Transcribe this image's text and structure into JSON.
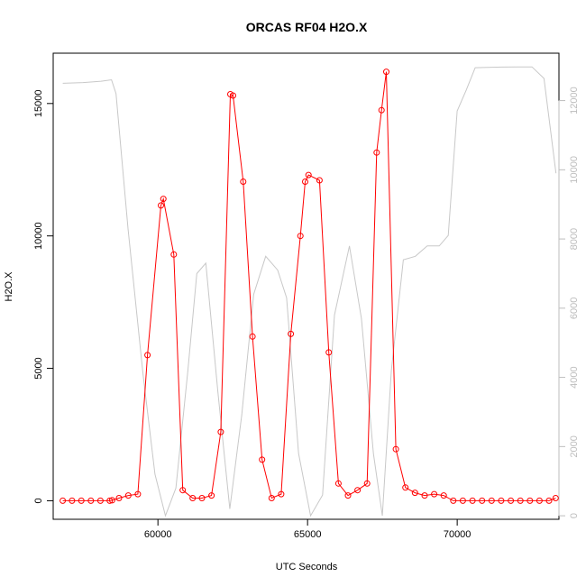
{
  "chart_data": {
    "type": "line",
    "title": "ORCAS RF04 H2O.X",
    "xlabel": "UTC Seconds",
    "ylabel": "H2O.X",
    "xlim": [
      56500,
      73400
    ],
    "ylim": [
      -700,
      16900
    ],
    "y2lim": [
      -102,
      13370
    ],
    "x_ticks": [
      60000,
      65000,
      70000
    ],
    "y_ticks": [
      0,
      5000,
      10000,
      15000
    ],
    "y2_ticks": [
      0,
      2000,
      4000,
      6000,
      8000,
      10000,
      12000
    ],
    "grid": false,
    "series": [
      {
        "axis": "left",
        "color": "#ff0000",
        "marker": "open-circle",
        "x": [
          56820,
          57130,
          57440,
          57760,
          58080,
          58390,
          58470,
          58700,
          59010,
          59330,
          59650,
          60100,
          60180,
          60530,
          60830,
          61160,
          61470,
          61790,
          62100,
          62420,
          62510,
          62850,
          63160,
          63480,
          63800,
          64120,
          64440,
          64760,
          64920,
          65030,
          65400,
          65710,
          66030,
          66350,
          66670,
          66990,
          67310,
          67470,
          67630,
          67950,
          68270,
          68590,
          68910,
          69230,
          69550,
          69870,
          70190,
          70510,
          70830,
          71150,
          71470,
          71790,
          72110,
          72430,
          72750,
          73070,
          73290
        ],
        "y": [
          0,
          0,
          0,
          0,
          0,
          0,
          20,
          100,
          200,
          250,
          5500,
          11150,
          11400,
          9300,
          400,
          100,
          100,
          200,
          2600,
          15350,
          15300,
          12050,
          6200,
          1550,
          100,
          250,
          6300,
          10000,
          12050,
          12300,
          12100,
          5600,
          650,
          200,
          400,
          650,
          13150,
          14750,
          16200,
          1950,
          500,
          300,
          200,
          250,
          200,
          0,
          0,
          0,
          0,
          0,
          0,
          0,
          0,
          0,
          0,
          0,
          100
        ]
      },
      {
        "axis": "right",
        "color": "#c8c8c8",
        "marker": "none",
        "x": [
          56820,
          57500,
          58100,
          58450,
          58600,
          59000,
          59500,
          59900,
          60250,
          60600,
          61000,
          61300,
          61600,
          62000,
          62400,
          62800,
          63200,
          63600,
          64000,
          64300,
          64700,
          65100,
          65500,
          65900,
          66400,
          66800,
          67200,
          67500,
          67800,
          68200,
          68600,
          69000,
          69400,
          69700,
          70000,
          70300,
          70600,
          71000,
          71500,
          72000,
          72500,
          72900,
          73300
        ],
        "y": [
          12500,
          12520,
          12560,
          12600,
          12200,
          8300,
          4100,
          1200,
          0,
          800,
          4200,
          7000,
          7300,
          3600,
          200,
          2900,
          6400,
          7500,
          7100,
          6300,
          1800,
          0,
          600,
          5800,
          7800,
          5700,
          1800,
          0,
          4200,
          7400,
          7500,
          7800,
          7800,
          8100,
          11700,
          12300,
          12950,
          12960,
          12970,
          12975,
          12975,
          12640,
          9900
        ]
      }
    ]
  }
}
